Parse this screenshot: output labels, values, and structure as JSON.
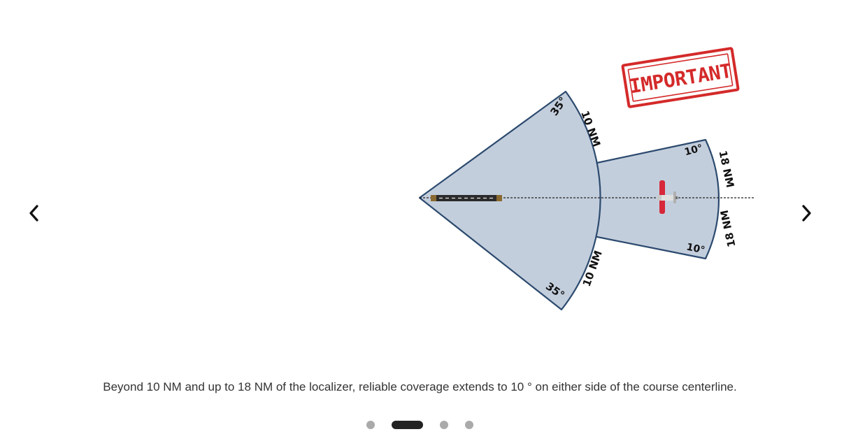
{
  "slide": {
    "caption": "Beyond 10 NM and up to 18 NM of the localizer, reliable coverage extends to 10 ° on either side of the course centerline."
  },
  "diagram": {
    "stamp_text": "IMPORTANT",
    "inner_angle_top": "35°",
    "inner_angle_bottom": "35°",
    "inner_range_top": "10 NM",
    "inner_range_bottom": "10 NM",
    "outer_angle_top": "10°",
    "outer_angle_bottom": "10°",
    "outer_range_top": "18 NM",
    "outer_range_bottom": "18 NM",
    "colors": {
      "sector_fill": "#c3cedd",
      "sector_stroke": "#2c4a6e",
      "stamp_red": "#d42a2a",
      "aircraft_red": "#d62839",
      "runway": "#2b2b2b"
    }
  },
  "navigation": {
    "prev_icon": "chevron-left-icon",
    "next_icon": "chevron-right-icon",
    "pages": 4,
    "active_page": 2
  }
}
